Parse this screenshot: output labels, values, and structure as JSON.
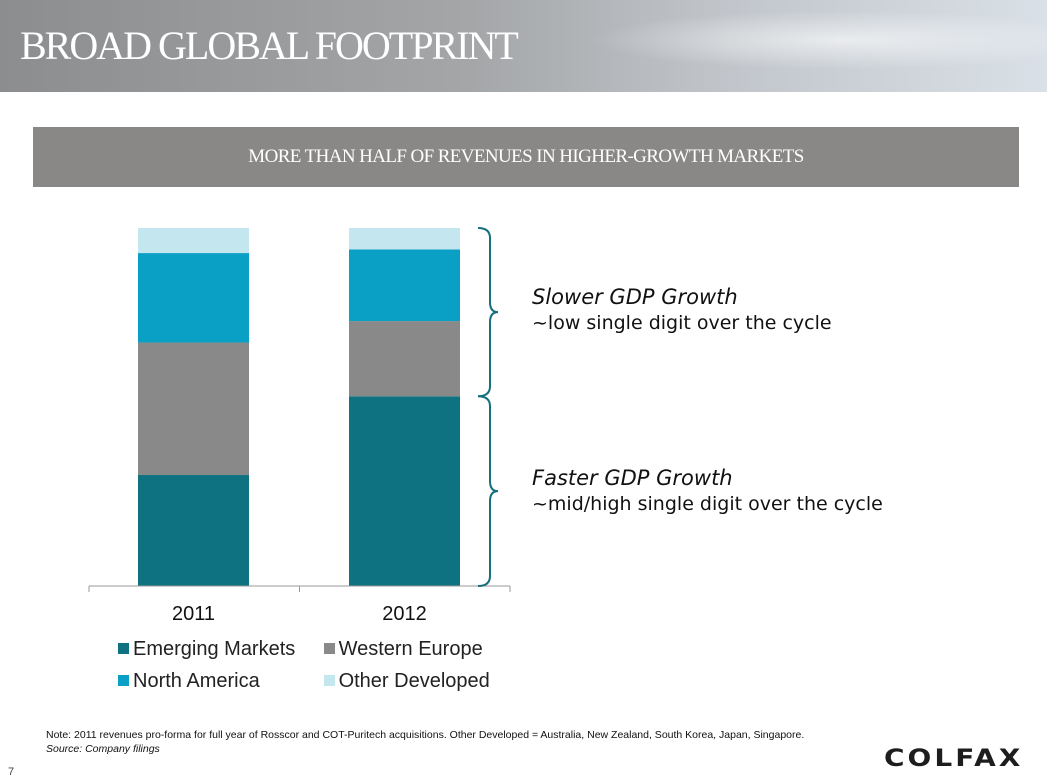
{
  "header": {
    "title": "BROAD GLOBAL FOOTPRINT"
  },
  "banner": {
    "text": "MORE THAN HALF OF REVENUES IN HIGHER-GROWTH MARKETS"
  },
  "chart_data": {
    "type": "bar",
    "stacked": true,
    "categories": [
      "2011",
      "2012"
    ],
    "ylim": [
      0,
      100
    ],
    "series": [
      {
        "name": "Emerging Markets",
        "color": "#0e7280",
        "values": [
          31,
          53
        ]
      },
      {
        "name": "Western Europe",
        "color": "#898989",
        "values": [
          37,
          21
        ]
      },
      {
        "name": "North America",
        "color": "#0aa0c6",
        "values": [
          25,
          20
        ]
      },
      {
        "name": "Other Developed",
        "color": "#c3e6ef",
        "values": [
          7,
          6
        ]
      }
    ],
    "legend_position": "bottom",
    "grid": false,
    "annotations": [
      {
        "heading": "Slower GDP Growth",
        "text": "~low single digit over the cycle",
        "group": [
          "Western Europe",
          "North America",
          "Other Developed"
        ]
      },
      {
        "heading": "Faster GDP Growth",
        "text": "~mid/high single digit over the cycle",
        "group": [
          "Emerging Markets"
        ]
      }
    ],
    "brace_color": "#13707c"
  },
  "footer": {
    "note": "Note: 2011 revenues pro-forma for full year of Rosscor and COT-Puritech acquisitions.  Other Developed = Australia, New Zealand, South Korea, Japan, Singapore.",
    "source": "Source: Company filings",
    "logo_text": "COLFAX",
    "page_number": "7"
  }
}
